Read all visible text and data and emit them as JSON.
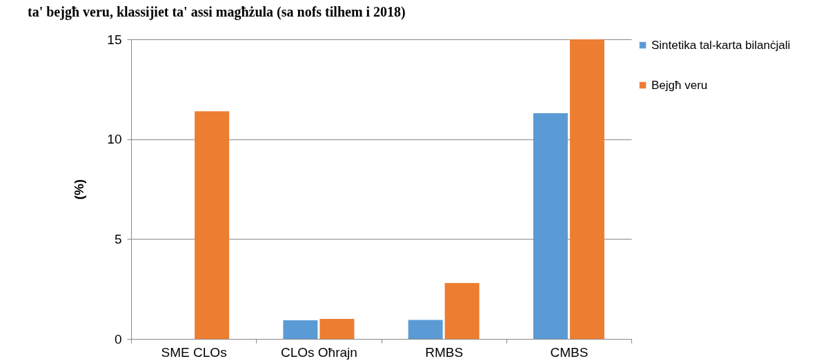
{
  "chart_data": {
    "type": "bar",
    "title": "ta' bejgħ veru, klassijiet ta' assi magħżula (sa nofs tilhem i 2018)",
    "ylabel": "(%)",
    "categories": [
      "SME CLOs",
      "CLOs Oħrajn",
      "RMBS",
      "CMBS"
    ],
    "series": [
      {
        "name": "Sintetika tal-karta bilanċjali",
        "color": "#5b9bd5",
        "values": [
          null,
          0.93,
          0.95,
          11.3
        ]
      },
      {
        "name": "Bejgħ veru",
        "color": "#ed7d31",
        "values": [
          11.4,
          1.0,
          2.8,
          15.0
        ]
      }
    ],
    "ylim": [
      0,
      15
    ],
    "yticks": [
      0,
      5,
      10,
      15
    ],
    "grid": "y",
    "legend": "right"
  }
}
